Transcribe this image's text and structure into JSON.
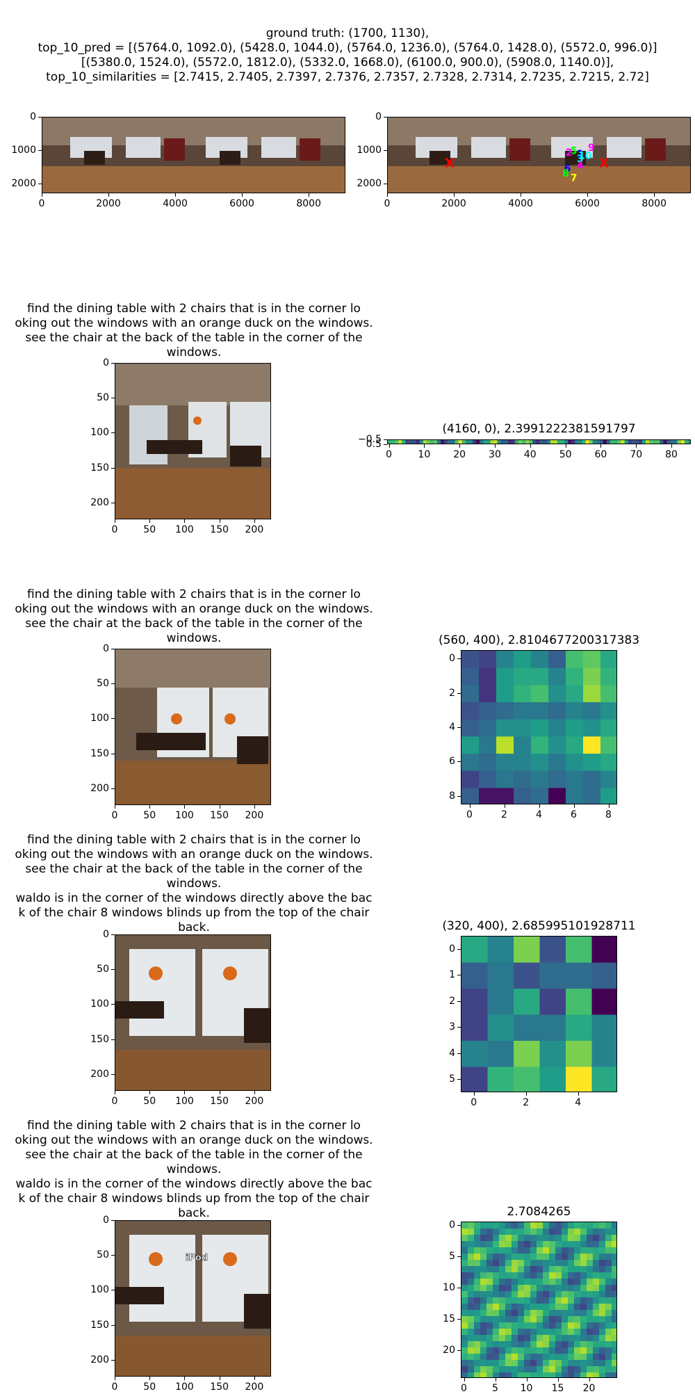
{
  "header": {
    "line1": "ground truth: (1700, 1130),",
    "line2": "top_10_pred = [(5764.0, 1092.0), (5428.0, 1044.0), (5764.0, 1236.0), (5764.0, 1428.0), (5572.0, 996.0)]",
    "line3": "[(5380.0, 1524.0), (5572.0, 1812.0), (5332.0, 1668.0), (6100.0, 900.0), (5908.0, 1140.0)],",
    "line4": "top_10_similarities = [2.7415, 2.7405, 2.7397, 2.7376, 2.7357, 2.7328, 2.7314, 2.7235, 2.7215, 2.72]"
  },
  "colors": {
    "marker_red": "#ff0000",
    "viridis_low": "#440154",
    "viridis_high": "#fde725"
  },
  "query_text_a": {
    "l1": "find the dining table with 2 chairs that is in the corner lo",
    "l2": "oking out the windows with an orange duck on the windows.",
    "l3": "see the chair at the back of the table in the corner of the",
    "l4": "windows."
  },
  "query_text_b": {
    "l5": "waldo is in the corner of the windows directly above the bac",
    "l6": "k of the chair 8 windows blinds up from the top of the chair",
    "l7": "back."
  },
  "patch_overlay_text": "iPod",
  "chart_data": [
    {
      "type": "image",
      "name": "panorama",
      "xticks": [
        "0",
        "2000",
        "4000",
        "6000",
        "8000"
      ],
      "yticks": [
        "0",
        "1000",
        "2000"
      ]
    },
    {
      "type": "scatter",
      "name": "panorama-with-predictions",
      "xticks": [
        "0",
        "2000",
        "4000",
        "6000",
        "8000"
      ],
      "yticks": [
        "0",
        "1000",
        "2000"
      ],
      "ground_truth": [
        1700,
        1130
      ],
      "points": [
        {
          "rank": "1",
          "x": 5764,
          "y": 1092,
          "color": "#0000ff"
        },
        {
          "rank": "2",
          "x": 5428,
          "y": 1044,
          "color": "#ff00ff"
        },
        {
          "rank": "3",
          "x": 5764,
          "y": 1236,
          "color": "#00ffff"
        },
        {
          "rank": "4",
          "x": 5764,
          "y": 1428,
          "color": "#ff00ff"
        },
        {
          "rank": "5",
          "x": 5572,
          "y": 996,
          "color": "#00ff00"
        },
        {
          "rank": "6",
          "x": 5380,
          "y": 1524,
          "color": "#0000ff"
        },
        {
          "rank": "7",
          "x": 5572,
          "y": 1812,
          "color": "#ffff00"
        },
        {
          "rank": "8",
          "x": 5332,
          "y": 1668,
          "color": "#00ff00"
        },
        {
          "rank": "9",
          "x": 6100,
          "y": 900,
          "color": "#ff00ff"
        },
        {
          "rank": "10",
          "x": 5908,
          "y": 1140,
          "color": "#00ffff"
        }
      ],
      "extra_markers": [
        {
          "label": "X",
          "x": 1850,
          "y": 1370
        },
        {
          "label": "X",
          "x": 6480,
          "y": 1370
        }
      ]
    },
    {
      "type": "image",
      "name": "crop-1",
      "xticks": [
        "0",
        "50",
        "100",
        "150",
        "200"
      ],
      "yticks": [
        "0",
        "50",
        "100",
        "150",
        "200"
      ]
    },
    {
      "type": "heatmap",
      "name": "strip-heatmap",
      "title": "(4160, 0), 2.3991222381591797",
      "xticks": [
        "0",
        "10",
        "20",
        "30",
        "40",
        "50",
        "60",
        "70",
        "80"
      ],
      "yticks": [
        "−0.5",
        "0.5"
      ]
    },
    {
      "type": "image",
      "name": "crop-2",
      "xticks": [
        "0",
        "50",
        "100",
        "150",
        "200"
      ],
      "yticks": [
        "0",
        "50",
        "100",
        "150",
        "200"
      ]
    },
    {
      "type": "heatmap",
      "name": "heatmap-9x9",
      "title": "(560, 400), 2.8104677200317383",
      "xticks": [
        "0",
        "2",
        "4",
        "6",
        "8"
      ],
      "yticks": [
        "0",
        "2",
        "4",
        "6",
        "8"
      ],
      "rows": 9,
      "cols": 9,
      "values": [
        [
          0.25,
          0.2,
          0.45,
          0.55,
          0.45,
          0.3,
          0.7,
          0.75,
          0.6
        ],
        [
          0.3,
          0.15,
          0.55,
          0.6,
          0.6,
          0.45,
          0.65,
          0.8,
          0.65
        ],
        [
          0.35,
          0.15,
          0.55,
          0.65,
          0.7,
          0.5,
          0.6,
          0.85,
          0.7
        ],
        [
          0.25,
          0.3,
          0.35,
          0.4,
          0.4,
          0.35,
          0.45,
          0.4,
          0.5
        ],
        [
          0.3,
          0.35,
          0.5,
          0.5,
          0.55,
          0.45,
          0.55,
          0.5,
          0.6
        ],
        [
          0.55,
          0.4,
          0.9,
          0.45,
          0.65,
          0.5,
          0.6,
          1.0,
          0.7
        ],
        [
          0.4,
          0.35,
          0.45,
          0.45,
          0.5,
          0.4,
          0.5,
          0.55,
          0.6
        ],
        [
          0.2,
          0.3,
          0.4,
          0.35,
          0.4,
          0.35,
          0.4,
          0.35,
          0.45
        ],
        [
          0.3,
          0.05,
          0.05,
          0.3,
          0.35,
          0.0,
          0.4,
          0.35,
          0.55
        ]
      ]
    },
    {
      "type": "image",
      "name": "crop-3",
      "xticks": [
        "0",
        "50",
        "100",
        "150",
        "200"
      ],
      "yticks": [
        "0",
        "50",
        "100",
        "150",
        "200"
      ]
    },
    {
      "type": "heatmap",
      "name": "heatmap-6x6",
      "title": "(320, 400), 2.685995101928711",
      "xticks": [
        "0",
        "2",
        "4"
      ],
      "yticks": [
        "0",
        "1",
        "2",
        "3",
        "4",
        "5"
      ],
      "rows": 6,
      "cols": 6,
      "values": [
        [
          0.6,
          0.45,
          0.8,
          0.25,
          0.7,
          0.0
        ],
        [
          0.3,
          0.4,
          0.25,
          0.35,
          0.35,
          0.3
        ],
        [
          0.2,
          0.4,
          0.6,
          0.2,
          0.7,
          0.0
        ],
        [
          0.2,
          0.5,
          0.4,
          0.4,
          0.6,
          0.45
        ],
        [
          0.45,
          0.4,
          0.8,
          0.5,
          0.8,
          0.45
        ],
        [
          0.2,
          0.65,
          0.7,
          0.55,
          1.0,
          0.6
        ]
      ]
    },
    {
      "type": "image",
      "name": "crop-4",
      "xticks": [
        "0",
        "50",
        "100",
        "150",
        "200"
      ],
      "yticks": [
        "0",
        "50",
        "100",
        "150",
        "200"
      ]
    },
    {
      "type": "heatmap",
      "name": "heatmap-25x25",
      "title": "2.7084265",
      "xticks": [
        "0",
        "5",
        "10",
        "15",
        "20"
      ],
      "yticks": [
        "0",
        "5",
        "10",
        "15",
        "20"
      ],
      "rows": 25,
      "cols": 25
    }
  ]
}
